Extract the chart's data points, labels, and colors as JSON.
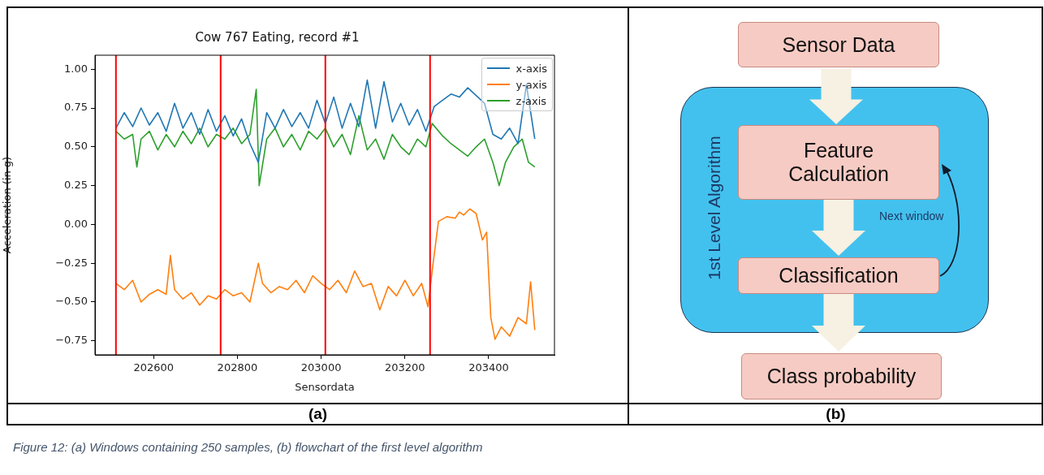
{
  "chart_data": [
    {
      "type": "line",
      "title": "Cow 767 Eating, record #1",
      "xlabel": "Sensordata",
      "ylabel": "Acceleration (in g)",
      "xlim": [
        202460,
        203557
      ],
      "xticks": [
        202600,
        202800,
        203000,
        203200,
        203400
      ],
      "ylim": [
        -0.84,
        1.09
      ],
      "yticks": [
        {
          "value": -0.75,
          "label": "−0.75"
        },
        {
          "value": -0.5,
          "label": "−0.50"
        },
        {
          "value": -0.25,
          "label": "−0.25"
        },
        {
          "value": 0,
          "label": "0.00"
        },
        {
          "value": 0.25,
          "label": "0.25"
        },
        {
          "value": 0.5,
          "label": "0.50"
        },
        {
          "value": 0.75,
          "label": "0.75"
        },
        {
          "value": 1,
          "label": "1.00"
        }
      ],
      "legend": "top right",
      "marker": "none",
      "line_style": "solid",
      "ref_lines": [
        {
          "axis": "x",
          "value": 202510,
          "color": "#ff0000"
        },
        {
          "axis": "x",
          "value": 202760,
          "color": "#ff0000"
        },
        {
          "axis": "x",
          "value": 203010,
          "color": "#ff0000"
        },
        {
          "axis": "x",
          "value": 203260,
          "color": "#ff0000"
        }
      ],
      "annotations": [
        "(a)",
        "Figure 12: (a) Windows containing 250 samples, (b) flowchart of the first level algorithm"
      ],
      "series": [
        {
          "name": "x-axis",
          "color": "#1f77b4",
          "x": [
            202510,
            202530,
            202550,
            202570,
            202590,
            202610,
            202630,
            202650,
            202670,
            202690,
            202710,
            202730,
            202750,
            202770,
            202790,
            202810,
            202830,
            202850,
            202870,
            202890,
            202910,
            202930,
            202950,
            202970,
            202990,
            203010,
            203030,
            203050,
            203070,
            203090,
            203110,
            203130,
            203150,
            203170,
            203190,
            203210,
            203230,
            203250,
            203270,
            203290,
            203310,
            203330,
            203350,
            203370,
            203390,
            203410,
            203430,
            203450,
            203470,
            203490,
            203510
          ],
          "values": [
            0.62,
            0.72,
            0.63,
            0.75,
            0.64,
            0.72,
            0.6,
            0.78,
            0.62,
            0.72,
            0.58,
            0.74,
            0.6,
            0.7,
            0.57,
            0.68,
            0.52,
            0.4,
            0.72,
            0.62,
            0.74,
            0.63,
            0.72,
            0.62,
            0.8,
            0.65,
            0.82,
            0.62,
            0.78,
            0.63,
            0.93,
            0.62,
            0.92,
            0.66,
            0.78,
            0.64,
            0.74,
            0.6,
            0.76,
            0.8,
            0.84,
            0.82,
            0.88,
            0.83,
            0.78,
            0.58,
            0.55,
            0.62,
            0.52,
            0.9,
            0.55
          ]
        },
        {
          "name": "y-axis",
          "color": "#ff7f0e",
          "x": [
            202510,
            202530,
            202550,
            202570,
            202590,
            202610,
            202630,
            202640,
            202650,
            202670,
            202690,
            202710,
            202730,
            202750,
            202770,
            202790,
            202810,
            202830,
            202850,
            202860,
            202880,
            202900,
            202920,
            202940,
            202960,
            202980,
            203000,
            203020,
            203040,
            203060,
            203080,
            203100,
            203120,
            203140,
            203160,
            203180,
            203200,
            203220,
            203240,
            203255,
            203265,
            203280,
            203300,
            203320,
            203330,
            203340,
            203355,
            203370,
            203385,
            203395,
            203405,
            203415,
            203430,
            203450,
            203470,
            203490,
            203500,
            203510
          ],
          "values": [
            -0.38,
            -0.42,
            -0.36,
            -0.5,
            -0.45,
            -0.42,
            -0.45,
            -0.2,
            -0.42,
            -0.48,
            -0.44,
            -0.52,
            -0.46,
            -0.48,
            -0.42,
            -0.46,
            -0.44,
            -0.5,
            -0.25,
            -0.38,
            -0.44,
            -0.4,
            -0.42,
            -0.36,
            -0.44,
            -0.33,
            -0.38,
            -0.42,
            -0.36,
            -0.44,
            -0.3,
            -0.4,
            -0.38,
            -0.55,
            -0.4,
            -0.46,
            -0.36,
            -0.46,
            -0.38,
            -0.53,
            -0.3,
            0.02,
            0.05,
            0.04,
            0.08,
            0.06,
            0.1,
            0.07,
            -0.1,
            -0.05,
            -0.6,
            -0.74,
            -0.66,
            -0.72,
            -0.6,
            -0.64,
            -0.37,
            -0.68
          ]
        },
        {
          "name": "z-axis",
          "color": "#2ca02c",
          "x": [
            202510,
            202530,
            202550,
            202560,
            202570,
            202590,
            202610,
            202630,
            202650,
            202670,
            202690,
            202710,
            202730,
            202750,
            202770,
            202790,
            202810,
            202830,
            202845,
            202852,
            202870,
            202890,
            202910,
            202930,
            202950,
            202970,
            202990,
            203010,
            203030,
            203050,
            203070,
            203090,
            203110,
            203130,
            203150,
            203170,
            203190,
            203210,
            203230,
            203250,
            203265,
            203290,
            203310,
            203330,
            203350,
            203370,
            203390,
            203410,
            203425,
            203440,
            203460,
            203480,
            203495,
            203510
          ],
          "values": [
            0.6,
            0.55,
            0.58,
            0.37,
            0.55,
            0.6,
            0.48,
            0.58,
            0.5,
            0.6,
            0.52,
            0.62,
            0.5,
            0.58,
            0.55,
            0.62,
            0.52,
            0.58,
            0.87,
            0.25,
            0.55,
            0.62,
            0.5,
            0.58,
            0.48,
            0.6,
            0.55,
            0.62,
            0.5,
            0.58,
            0.45,
            0.7,
            0.48,
            0.55,
            0.42,
            0.58,
            0.5,
            0.45,
            0.55,
            0.5,
            0.65,
            0.57,
            0.52,
            0.48,
            0.44,
            0.5,
            0.55,
            0.4,
            0.25,
            0.4,
            0.5,
            0.55,
            0.4,
            0.37
          ]
        }
      ]
    },
    {
      "type": "other",
      "annotations": [
        "Sensor Data",
        "Feature Calculation",
        "Classification",
        "Class probability",
        "1st Level Algorithm",
        "Next window",
        "(b)"
      ]
    }
  ]
}
